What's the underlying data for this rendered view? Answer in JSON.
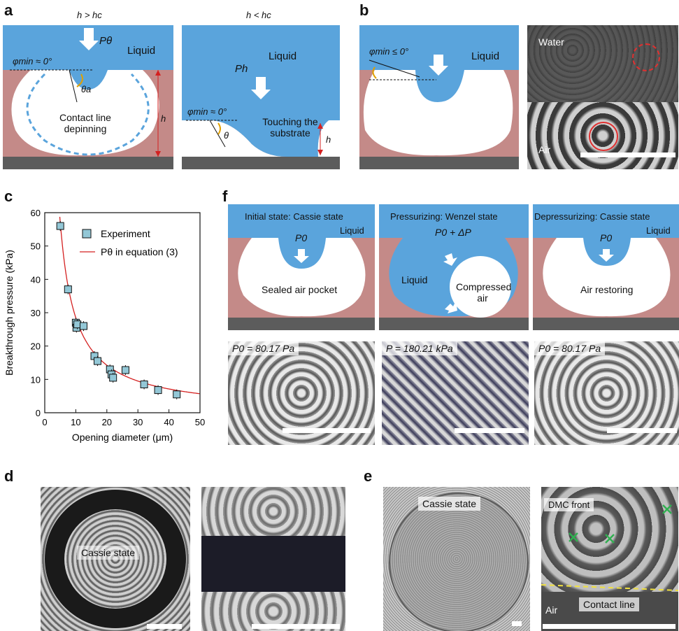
{
  "panel_labels": {
    "a": "a",
    "b": "b",
    "c": "c",
    "d": "d",
    "e": "e",
    "f": "f"
  },
  "panel_a": {
    "left_title": "h > hc",
    "right_title": "h < hc",
    "p_theta": "Pθ",
    "p_h": "Ph",
    "liquid": "Liquid",
    "phi_min": "φmin ≈ 0°",
    "theta_a": "θa",
    "theta": "θ",
    "h": "h",
    "depinning": "Contact line depinning",
    "touching": "Touching the substrate"
  },
  "panel_b": {
    "phi_min": "φmin ≤ 0°",
    "liquid": "Liquid",
    "water": "Water",
    "air": "Air"
  },
  "chart_data": {
    "type": "scatter",
    "xlabel": "Opening diameter (μm)",
    "ylabel": "Breakthrough pressure (kPa)",
    "xlim": [
      0,
      50
    ],
    "ylim": [
      0,
      60
    ],
    "xticks": [
      0,
      10,
      20,
      30,
      40,
      50
    ],
    "yticks": [
      0,
      10,
      20,
      30,
      40,
      50,
      60
    ],
    "legend_position": "top-right",
    "series": [
      {
        "name": "Experiment",
        "kind": "points",
        "color": "#93c7d6",
        "x": [
          5,
          7.5,
          10,
          10.2,
          10.5,
          12.5,
          16,
          17,
          21,
          21.5,
          22,
          26,
          32,
          36.5,
          42.5
        ],
        "y": [
          56,
          37,
          27,
          25.5,
          26.5,
          26,
          17,
          15.5,
          13,
          11.5,
          10.5,
          12.8,
          8.5,
          6.8,
          5.5
        ]
      },
      {
        "name": "Pθ in equation (3)",
        "kind": "curve",
        "color": "#d42020",
        "model": "y = 285 / x"
      }
    ]
  },
  "panel_f": {
    "states": [
      {
        "title": "Initial state: Cassie state",
        "pressure": "P0",
        "liquid": "Liquid",
        "body": "Sealed air pocket"
      },
      {
        "title": "Pressurizing: Wenzel state",
        "pressure": "P0 + ΔP",
        "liquid": "Liquid",
        "body": "Compressed air"
      },
      {
        "title": "Depressurizing: Cassie state",
        "pressure": "P0",
        "liquid": "Liquid",
        "body": "Air restoring"
      }
    ],
    "photo_labels": [
      "P0 = 80.17 Pa",
      "P = 180.21 kPa",
      "P0 = 80.17 Pa"
    ]
  },
  "panel_d": {
    "cassie": "Cassie state"
  },
  "panel_e": {
    "cassie": "Cassie state",
    "dmc_front": "DMC front",
    "air": "Air",
    "contact_line": "Contact line"
  },
  "colors": {
    "liquid": "#5aa4dc",
    "substrate": "#c48a88",
    "base": "#5c5c5c",
    "marker": "#93c7d6",
    "fit": "#d42020"
  }
}
